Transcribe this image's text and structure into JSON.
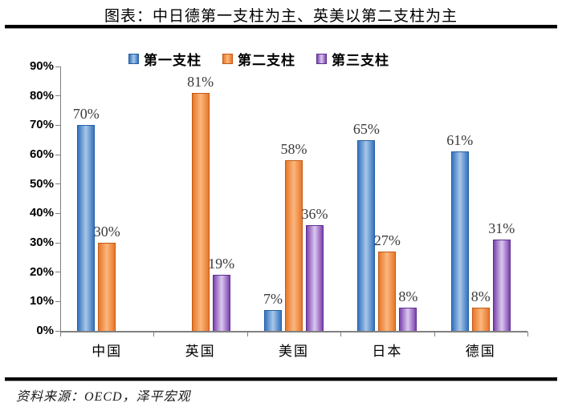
{
  "chart_data": {
    "type": "bar",
    "title": "图表：中日德第一支柱为主、英美以第二支柱为主",
    "categories": [
      "中国",
      "英国",
      "美国",
      "日本",
      "德国"
    ],
    "series": [
      {
        "name": "第一支柱",
        "color": "#3473BE",
        "color_light": "#A9C7E8",
        "border": "#2460A5",
        "values": [
          70,
          null,
          7,
          65,
          61
        ]
      },
      {
        "name": "第二支柱",
        "color": "#E8772A",
        "color_light": "#FBB77E",
        "border": "#C35A14",
        "values": [
          30,
          81,
          58,
          27,
          8
        ]
      },
      {
        "name": "第三支柱",
        "color": "#7C43AE",
        "color_light": "#DBC8EF",
        "border": "#5F2E90",
        "values": [
          null,
          19,
          36,
          8,
          31
        ]
      }
    ],
    "xlabel": "",
    "ylabel": "",
    "ylim": [
      0,
      90
    ],
    "ytick_step": 10,
    "ytick_suffix": "%",
    "value_suffix": "%",
    "grid": false,
    "legend_position": "top",
    "axis_color": "#808080"
  },
  "source": {
    "text": "资料来源：OECD，泽平宏观"
  }
}
